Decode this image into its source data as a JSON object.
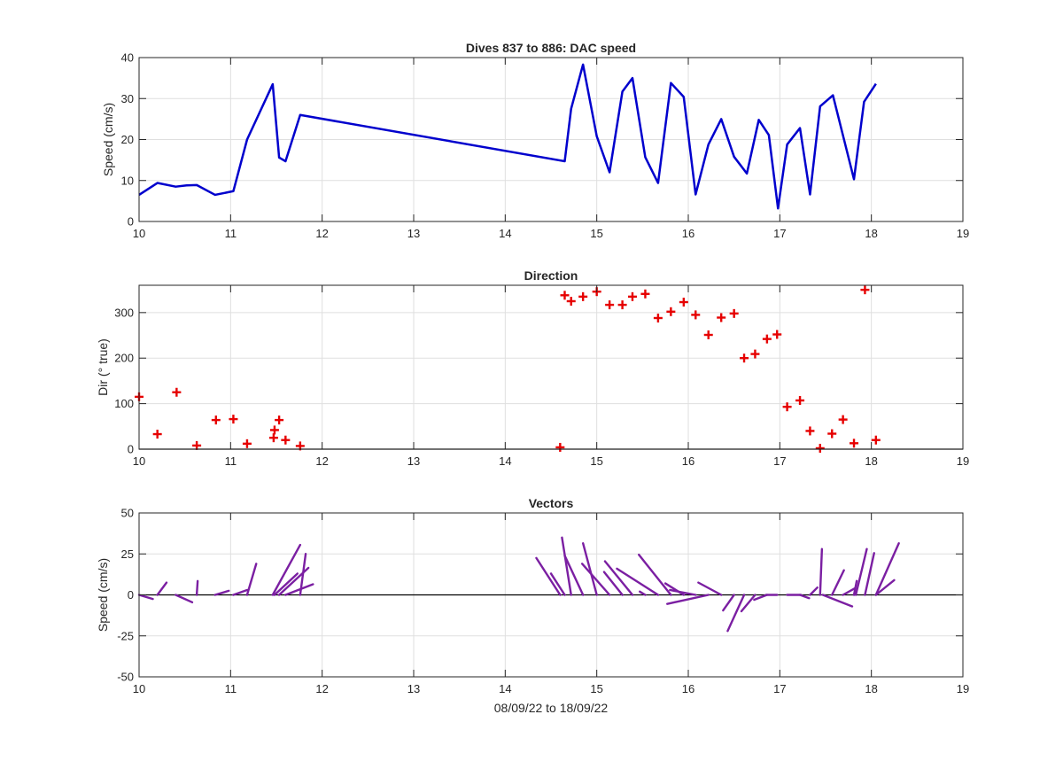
{
  "chart_data": [
    {
      "type": "line",
      "title": "Dives 837 to 886: DAC speed",
      "xlabel": "",
      "ylabel": "Speed (cm/s)",
      "xlim": [
        10,
        19
      ],
      "ylim": [
        0,
        40
      ],
      "xticks": [
        "10",
        "11",
        "12",
        "13",
        "14",
        "15",
        "16",
        "17",
        "18",
        "19"
      ],
      "yticks": [
        "0",
        "10",
        "20",
        "30",
        "40"
      ],
      "grid": true,
      "line_color": "#0000cd",
      "series": [
        {
          "x": [
            10.0,
            10.2,
            10.4,
            10.52,
            10.63,
            10.83,
            11.03,
            11.18,
            11.46,
            11.53,
            11.6,
            11.76,
            14.65,
            14.72,
            14.85,
            15.0,
            15.14,
            15.28,
            15.39,
            15.53,
            15.67,
            15.81,
            15.95,
            16.08,
            16.22,
            16.36,
            16.5,
            16.64,
            16.77,
            16.88,
            16.98,
            17.08,
            17.22,
            17.33,
            17.44,
            17.58,
            17.69,
            17.81,
            17.92,
            18.05
          ],
          "y": [
            6.5,
            9.4,
            8.5,
            8.8,
            8.9,
            6.5,
            7.4,
            20,
            33.5,
            15.6,
            14.7,
            26,
            14.7,
            27.5,
            38.3,
            20.8,
            12,
            31.7,
            35,
            15.7,
            9.4,
            33.8,
            30.4,
            6.6,
            18.8,
            25,
            15.8,
            11.7,
            24.8,
            21.1,
            3.2,
            18.8,
            22.8,
            6.6,
            28.1,
            30.8,
            21,
            10.3,
            29.2,
            33.6
          ]
        }
      ]
    },
    {
      "type": "scatter",
      "title": "Direction",
      "xlabel": "",
      "ylabel": "Dir (° true)",
      "xlim": [
        10,
        19
      ],
      "ylim": [
        0,
        360
      ],
      "xticks": [
        "10",
        "11",
        "12",
        "13",
        "14",
        "15",
        "16",
        "17",
        "18",
        "19"
      ],
      "yticks": [
        "0",
        "100",
        "200",
        "300"
      ],
      "grid": true,
      "marker": "+",
      "marker_color": "#e60000",
      "series": [
        {
          "x": [
            10.0,
            10.2,
            10.41,
            10.63,
            10.84,
            11.03,
            11.18,
            11.47,
            11.48,
            11.53,
            11.6,
            11.76,
            14.6,
            14.65,
            14.72,
            14.85,
            15.0,
            15.14,
            15.28,
            15.39,
            15.53,
            15.67,
            15.81,
            15.95,
            16.08,
            16.22,
            16.36,
            16.5,
            16.61,
            16.73,
            16.86,
            16.97,
            17.08,
            17.22,
            17.33,
            17.44,
            17.57,
            17.69,
            17.81,
            17.93,
            18.05
          ],
          "y": [
            115,
            33,
            125,
            8,
            64,
            66,
            12,
            25,
            42,
            64,
            20,
            7,
            4,
            338,
            325,
            335,
            346,
            317,
            317,
            335,
            341,
            288,
            302,
            323,
            295,
            251,
            289,
            298,
            200,
            209,
            242,
            252,
            93,
            107,
            40,
            2,
            34,
            65,
            13,
            350,
            20
          ]
        }
      ]
    },
    {
      "type": "vector",
      "title": "Vectors",
      "xlabel": "08/09/22 to 18/09/22",
      "ylabel": "Speed (cm/s)",
      "xlim": [
        10,
        19
      ],
      "ylim": [
        -50,
        50
      ],
      "xticks": [
        "10",
        "11",
        "12",
        "13",
        "14",
        "15",
        "16",
        "17",
        "18",
        "19"
      ],
      "yticks": [
        "-50",
        "-25",
        "0",
        "25",
        "50"
      ],
      "grid": true,
      "stick_color": "#7b1fa2",
      "baseline": 0,
      "sticks": [
        {
          "x": 10.0,
          "dx": 0.15,
          "dy": -2.5
        },
        {
          "x": 10.2,
          "dx": 0.1,
          "dy": 7.5
        },
        {
          "x": 10.4,
          "dx": 0.18,
          "dy": -4.5
        },
        {
          "x": 10.63,
          "dx": 0.01,
          "dy": 8.5
        },
        {
          "x": 10.83,
          "dx": 0.15,
          "dy": 2.5
        },
        {
          "x": 11.03,
          "dx": 0.15,
          "dy": 3
        },
        {
          "x": 11.18,
          "dx": 0.1,
          "dy": 19
        },
        {
          "x": 11.46,
          "dx": 0.3,
          "dy": 30.5
        },
        {
          "x": 11.48,
          "dx": 0.25,
          "dy": 13
        },
        {
          "x": 11.53,
          "dx": 0.32,
          "dy": 16.5
        },
        {
          "x": 11.6,
          "dx": 0.3,
          "dy": 6.5
        },
        {
          "x": 11.76,
          "dx": 0.06,
          "dy": 25
        },
        {
          "x": 14.6,
          "dx": -0.26,
          "dy": 22.5
        },
        {
          "x": 14.65,
          "dx": -0.15,
          "dy": 13
        },
        {
          "x": 14.72,
          "dx": -0.1,
          "dy": 35
        },
        {
          "x": 14.85,
          "dx": -0.2,
          "dy": 24
        },
        {
          "x": 15.0,
          "dx": -0.15,
          "dy": 31.5
        },
        {
          "x": 15.14,
          "dx": -0.3,
          "dy": 19
        },
        {
          "x": 15.28,
          "dx": -0.2,
          "dy": 14
        },
        {
          "x": 15.39,
          "dx": -0.3,
          "dy": 20.5
        },
        {
          "x": 15.53,
          "dx": -0.06,
          "dy": 2
        },
        {
          "x": 15.67,
          "dx": -0.45,
          "dy": 16
        },
        {
          "x": 15.81,
          "dx": -0.35,
          "dy": 24.5
        },
        {
          "x": 15.95,
          "dx": -0.2,
          "dy": 7
        },
        {
          "x": 16.08,
          "dx": -0.28,
          "dy": 3
        },
        {
          "x": 16.22,
          "dx": -0.45,
          "dy": -5.5
        },
        {
          "x": 16.36,
          "dx": -0.25,
          "dy": 7.5
        },
        {
          "x": 16.5,
          "dx": -0.12,
          "dy": -9.5
        },
        {
          "x": 16.61,
          "dx": -0.18,
          "dy": -22
        },
        {
          "x": 16.73,
          "dx": -0.15,
          "dy": -10
        },
        {
          "x": 16.86,
          "dx": -0.14,
          "dy": -3
        },
        {
          "x": 16.97,
          "dx": -0.12,
          "dy": 0
        },
        {
          "x": 17.08,
          "dx": 0.15,
          "dy": 0
        },
        {
          "x": 17.22,
          "dx": 0.1,
          "dy": -2
        },
        {
          "x": 17.33,
          "dx": 0.08,
          "dy": 4.5
        },
        {
          "x": 17.44,
          "dx": 0.02,
          "dy": 28
        },
        {
          "x": 17.57,
          "dx": 0.13,
          "dy": 15
        },
        {
          "x": 17.69,
          "dx": 0.13,
          "dy": 4
        },
        {
          "x": 17.47,
          "dx": 0.32,
          "dy": -7
        },
        {
          "x": 17.81,
          "dx": 0.03,
          "dy": 8.5
        },
        {
          "x": 17.83,
          "dx": 0.12,
          "dy": 28
        },
        {
          "x": 17.93,
          "dx": 0.1,
          "dy": 25.5
        },
        {
          "x": 18.05,
          "dx": 0.2,
          "dy": 9
        },
        {
          "x": 18.05,
          "dx": 0.25,
          "dy": 31.5
        }
      ]
    }
  ]
}
